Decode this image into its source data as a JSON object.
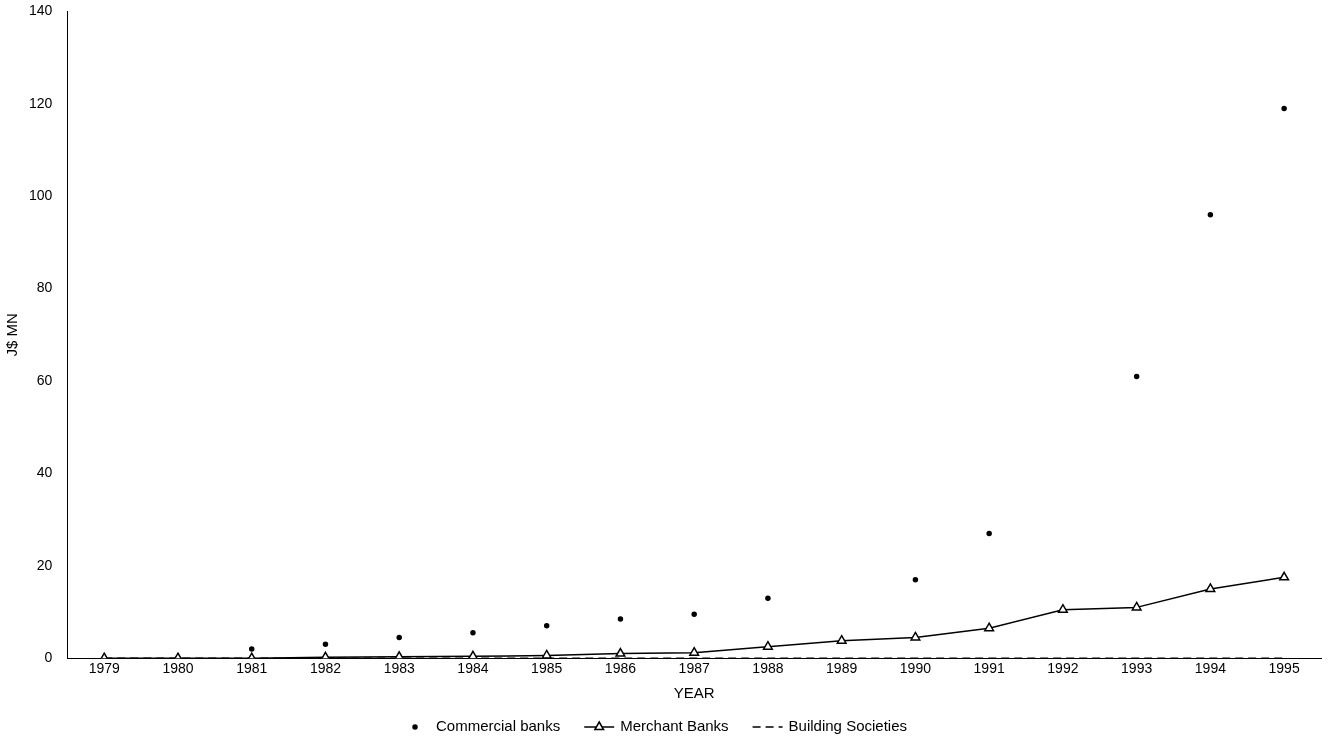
{
  "chart_data": {
    "type": "line",
    "xlabel": "YEAR",
    "ylabel": "J$ MN",
    "categories": [
      "1979",
      "1980",
      "1981",
      "1982",
      "1983",
      "1984",
      "1985",
      "1986",
      "1987",
      "1988",
      "1989",
      "1990",
      "1991",
      "1992",
      "1993",
      "1994",
      "1995"
    ],
    "series": [
      {
        "name": "Commercial banks",
        "type": "scatter",
        "color": "#000000",
        "marker": "circle",
        "values": [
          null,
          null,
          2,
          3,
          4.5,
          5.5,
          7,
          8.5,
          9.5,
          13,
          null,
          17,
          27,
          null,
          61,
          96,
          119
        ]
      },
      {
        "name": "Merchant Banks",
        "type": "line",
        "color": "#000000",
        "marker": "triangle",
        "line_style": "solid",
        "values": [
          0,
          0,
          0,
          0.2,
          0.3,
          0.4,
          0.6,
          1,
          1.2,
          2.5,
          3.8,
          4.5,
          6.5,
          10.5,
          11,
          15,
          17.5
        ]
      },
      {
        "name": "Building Societies",
        "type": "line",
        "color": "#000000",
        "marker": "none",
        "line_style": "dashed",
        "values": [
          0,
          0,
          0,
          0,
          0,
          0,
          0,
          0,
          0,
          0,
          0,
          0,
          0,
          0,
          0,
          0,
          0
        ]
      }
    ],
    "ylim": [
      0,
      140
    ],
    "yticks": [
      0,
      20,
      40,
      60,
      80,
      100,
      120,
      140
    ],
    "grid": false,
    "legend": "bottom"
  }
}
